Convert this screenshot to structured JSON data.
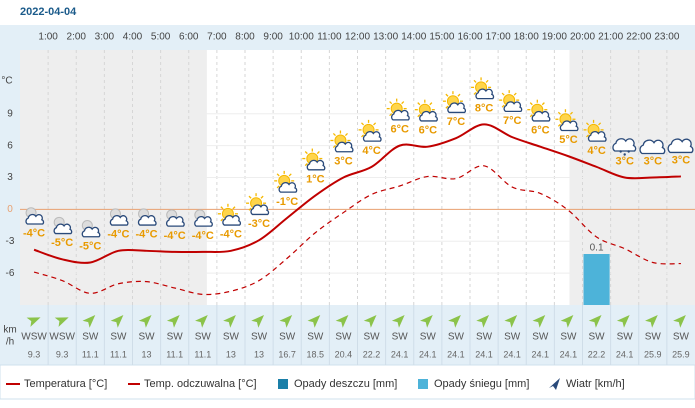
{
  "chart_data": {
    "type": "line",
    "title": "2022-04-04",
    "categories": [
      null,
      "1:00",
      "2:00",
      "3:00",
      "4:00",
      "5:00",
      "6:00",
      "7:00",
      "8:00",
      "9:00",
      "10:00",
      "11:00",
      "12:00",
      "13:00",
      "14:00",
      "15:00",
      "16:00",
      "17:00",
      "18:00",
      "19:00",
      "20:00",
      "21:00",
      "22:00",
      "23:00"
    ],
    "y_label": "°C",
    "ylim": [
      -9,
      15
    ],
    "yticks": [
      -6,
      -3,
      0,
      3,
      6,
      9
    ],
    "y2lim": [
      0,
      0.5
    ],
    "series": [
      {
        "name": "Temperatura [°C]",
        "color": "#c00000",
        "values": [
          -3.8,
          -4.7,
          -5.0,
          -3.9,
          -3.9,
          -4.0,
          -4.0,
          -3.9,
          -2.9,
          -0.8,
          1.3,
          3.0,
          4.0,
          6.0,
          5.9,
          6.7,
          8.0,
          6.8,
          5.9,
          5.0,
          4.0,
          3.0,
          3.0,
          3.1
        ],
        "value_labels": [
          "-4°C",
          "-5°C",
          "-5°C",
          "-4°C",
          "-4°C",
          "-4°C",
          "-4°C",
          "-4°C",
          "-3°C",
          "-1°C",
          "1°C",
          "3°C",
          "4°C",
          "6°C",
          "6°C",
          "7°C",
          "8°C",
          "7°C",
          "6°C",
          "5°C",
          "4°C",
          "3°C",
          "3°C",
          "3°C"
        ]
      },
      {
        "name": "Temp. odczuwalna [°C]",
        "color": "#c00000",
        "dashed": true,
        "values": [
          -5.9,
          -6.7,
          -7.9,
          -7.0,
          -6.8,
          -7.4,
          -8.0,
          -7.7,
          -6.7,
          -4.6,
          -2.2,
          -0.3,
          1.4,
          2.2,
          3.1,
          2.9,
          4.1,
          2.1,
          1.5,
          -0.1,
          -2.6,
          -3.7,
          -5.0,
          -5.1
        ]
      },
      {
        "name": "Opady deszczu [mm]",
        "color": "#1a7fa8",
        "type": "bar",
        "axis": "y2",
        "values": [
          0,
          0,
          0,
          0,
          0,
          0,
          0,
          0,
          0,
          0,
          0,
          0,
          0,
          0,
          0,
          0,
          0,
          0,
          0,
          0,
          0,
          0,
          0,
          0
        ]
      },
      {
        "name": "Opady śniegu [mm]",
        "color": "#4db3d9",
        "type": "bar",
        "axis": "y2",
        "values": [
          0,
          0,
          0,
          0,
          0,
          0,
          0,
          0,
          0,
          0,
          0,
          0,
          0,
          0,
          0,
          0,
          0,
          0,
          0,
          0,
          0.1,
          0,
          0,
          0
        ]
      }
    ],
    "wind": {
      "name": "Wiatr [km/h]",
      "axis_label": [
        "km",
        "/h"
      ],
      "color": "#8bc34a",
      "directions": [
        "WSW",
        "WSW",
        "SW",
        "SW",
        "SW",
        "SW",
        "SW",
        "SW",
        "SW",
        "SW",
        "SW",
        "SW",
        "SW",
        "SW",
        "SW",
        "SW",
        "SW",
        "SW",
        "SW",
        "SW",
        "SW",
        "SW",
        "SW",
        "SW"
      ],
      "values": [
        9.3,
        9.3,
        11.1,
        11.1,
        13,
        11.1,
        11.1,
        13,
        13,
        16.7,
        18.5,
        20.4,
        22.2,
        24.1,
        24.1,
        24.1,
        24.1,
        24.1,
        24.1,
        24.1,
        22.2,
        24.1,
        25.9,
        25.9
      ]
    }
  }
}
